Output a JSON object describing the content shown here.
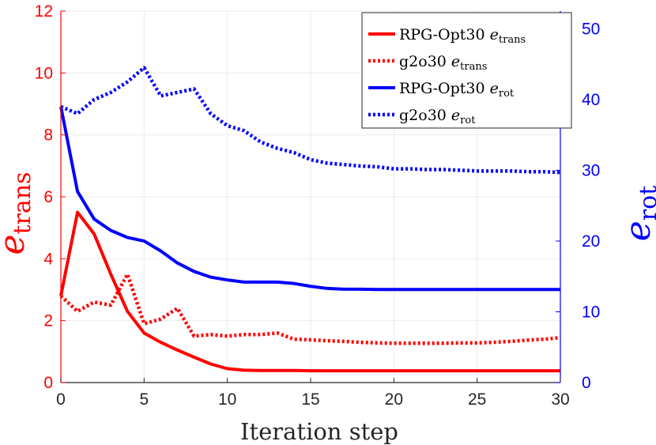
{
  "chart_data": {
    "type": "line",
    "title": "",
    "xlabel": "Iteration step",
    "ylabel_left": {
      "base": "e",
      "sub": "trans"
    },
    "ylabel_right": {
      "base": "e",
      "sub": "rot"
    },
    "xlim": [
      0,
      30
    ],
    "ylim_left": [
      0,
      12
    ],
    "ylim_right": [
      0,
      52.5
    ],
    "xticks": [
      0,
      5,
      10,
      15,
      20,
      25,
      30
    ],
    "yticks_left": [
      0,
      2,
      4,
      6,
      8,
      10,
      12
    ],
    "yticks_right": [
      0,
      10,
      20,
      30,
      40,
      50
    ],
    "grid": true,
    "legend_position": "top-right",
    "colors": {
      "trans": "#ff0000",
      "rot": "#0000ff",
      "axis": "#262626",
      "grid": "#ebebeb"
    },
    "x": [
      0,
      1,
      2,
      3,
      4,
      5,
      6,
      7,
      8,
      9,
      10,
      11,
      12,
      13,
      14,
      15,
      16,
      17,
      18,
      19,
      20,
      21,
      22,
      23,
      24,
      25,
      26,
      27,
      28,
      29,
      30
    ],
    "series": [
      {
        "name": "RPG-Opt30",
        "sub": "trans",
        "axis": "left",
        "style": "solid",
        "color": "#ff0000",
        "values": [
          2.8,
          5.5,
          4.8,
          3.5,
          2.3,
          1.6,
          1.3,
          1.05,
          0.82,
          0.6,
          0.45,
          0.4,
          0.39,
          0.39,
          0.39,
          0.38,
          0.38,
          0.38,
          0.38,
          0.38,
          0.38,
          0.38,
          0.38,
          0.38,
          0.38,
          0.38,
          0.38,
          0.38,
          0.38,
          0.38,
          0.38
        ]
      },
      {
        "name": "g2o30",
        "sub": "trans",
        "axis": "left",
        "style": "dotted",
        "color": "#ff0000",
        "values": [
          2.8,
          2.3,
          2.6,
          2.5,
          3.5,
          1.9,
          2.05,
          2.4,
          1.5,
          1.55,
          1.5,
          1.55,
          1.55,
          1.6,
          1.4,
          1.38,
          1.35,
          1.33,
          1.3,
          1.28,
          1.27,
          1.27,
          1.27,
          1.27,
          1.28,
          1.28,
          1.3,
          1.33,
          1.37,
          1.4,
          1.45
        ]
      },
      {
        "name": "RPG-Opt30",
        "sub": "rot",
        "axis": "right",
        "style": "solid",
        "color": "#0000ff",
        "values": [
          39,
          27,
          23.1,
          21.5,
          20.5,
          20,
          18.6,
          16.9,
          15.7,
          14.9,
          14.5,
          14.2,
          14.2,
          14.2,
          14,
          13.6,
          13.3,
          13.2,
          13.2,
          13.15,
          13.15,
          13.15,
          13.15,
          13.15,
          13.15,
          13.15,
          13.15,
          13.15,
          13.15,
          13.15,
          13.15
        ]
      },
      {
        "name": "g2o30",
        "sub": "rot",
        "axis": "right",
        "style": "dotted",
        "color": "#0000ff",
        "values": [
          39,
          38,
          40,
          41,
          42.5,
          44.5,
          40.5,
          41,
          41.5,
          38,
          36.3,
          35.6,
          34,
          33.1,
          32.5,
          31.5,
          31,
          30.8,
          30.6,
          30.5,
          30.2,
          30.2,
          30.1,
          30.1,
          30,
          29.9,
          29.9,
          29.9,
          29.8,
          29.8,
          29.7
        ]
      }
    ]
  }
}
